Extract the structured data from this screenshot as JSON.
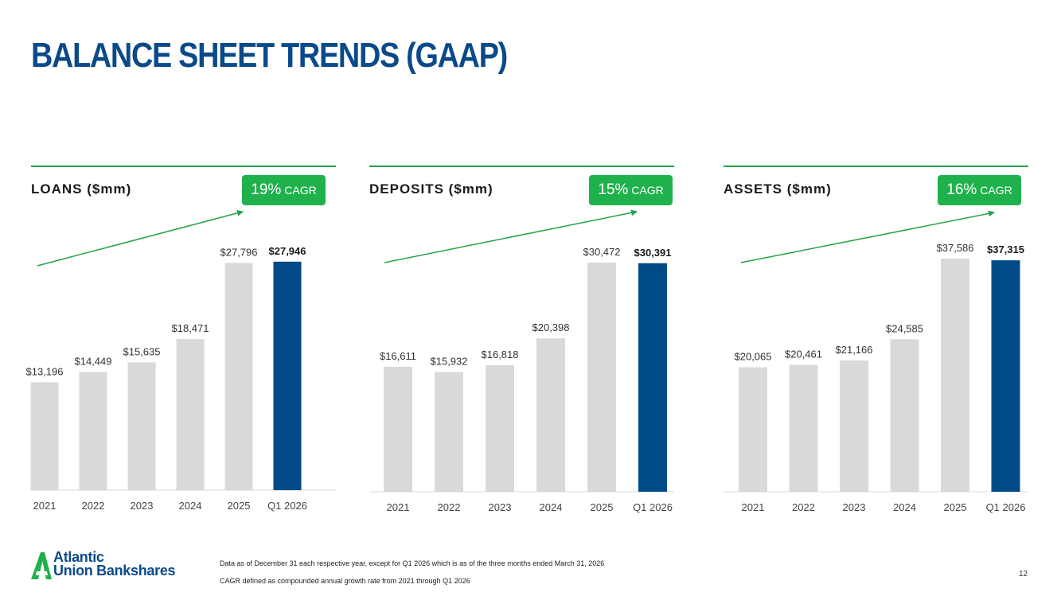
{
  "page": {
    "title": "BALANCE SHEET TRENDS (GAAP)",
    "footnote1": "Data as of December 31 each respective year, except for Q1 2026 which is as of the three months ended March 31, 2026",
    "footnote2": "CAGR defined as compounded annual growth rate from 2021 through Q1 2026",
    "page_number": "12",
    "logo_line1": "Atlantic",
    "logo_line2": "Union Bankshares"
  },
  "colors": {
    "title": "#0a4a8a",
    "bar_default": "#d9d9d9",
    "bar_highlight": "#004a87",
    "accent_green": "#1fb14c",
    "rule_green": "#27a14a"
  },
  "panels": [
    {
      "title": "LOANS ($mm)",
      "cagr_pct": "19%",
      "cagr_label": "CAGR"
    },
    {
      "title": "DEPOSITS ($mm)",
      "cagr_pct": "15%",
      "cagr_label": "CAGR"
    },
    {
      "title": "ASSETS ($mm)",
      "cagr_pct": "16%",
      "cagr_label": "CAGR"
    }
  ],
  "chart_data": [
    {
      "type": "bar",
      "title": "LOANS ($mm)",
      "categories": [
        "2021",
        "2022",
        "2023",
        "2024",
        "2025",
        "Q1 2026"
      ],
      "values": [
        13196,
        14449,
        15635,
        18471,
        27796,
        27946
      ],
      "labels": [
        "$13,196",
        "$14,449",
        "$15,635",
        "$18,471",
        "$27,796",
        "$27,946"
      ],
      "highlight_index": 5,
      "ylim": [
        0,
        29000
      ]
    },
    {
      "type": "bar",
      "title": "DEPOSITS ($mm)",
      "categories": [
        "2021",
        "2022",
        "2023",
        "2024",
        "2025",
        "Q1 2026"
      ],
      "values": [
        16611,
        15932,
        16818,
        20398,
        30472,
        30391
      ],
      "labels": [
        "$16,611",
        "$15,932",
        "$16,818",
        "$20,398",
        "$30,472",
        "$30,391"
      ],
      "highlight_index": 5,
      "ylim": [
        0,
        30472
      ]
    },
    {
      "type": "bar",
      "title": "ASSETS ($mm)",
      "categories": [
        "2021",
        "2022",
        "2023",
        "2024",
        "2025",
        "Q1 2026"
      ],
      "values": [
        20065,
        20461,
        21166,
        24585,
        37586,
        37315
      ],
      "labels": [
        "$20,065",
        "$20,461",
        "$21,166",
        "$24,585",
        "$37,586",
        "$37,315"
      ],
      "highlight_index": 5,
      "ylim": [
        0,
        37586
      ]
    }
  ]
}
